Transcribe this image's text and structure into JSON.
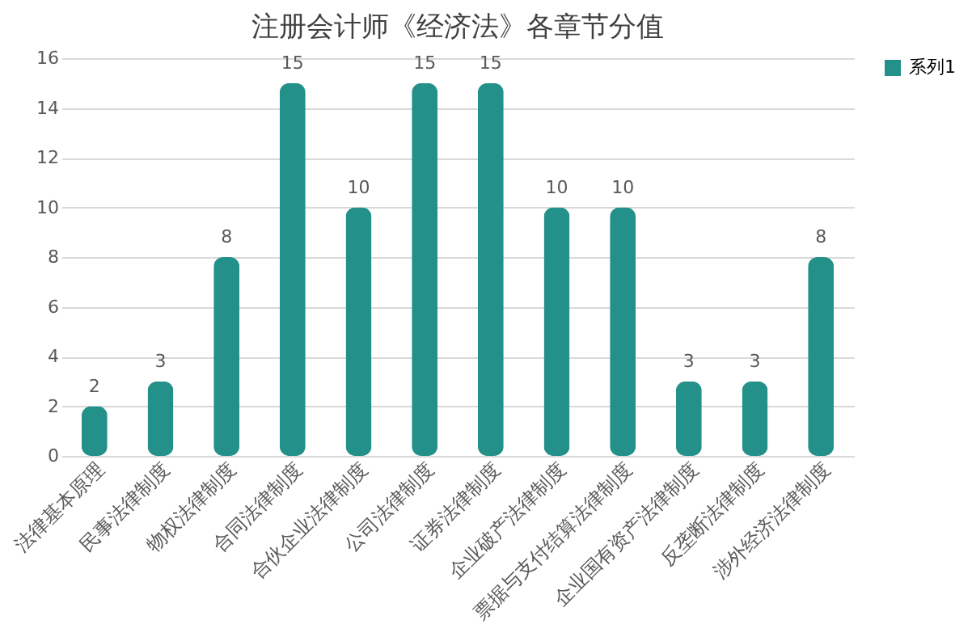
{
  "chart_data": {
    "type": "bar",
    "title": "注册会计师《经济法》各章节分值",
    "categories": [
      "法律基本原理",
      "民事法律制度",
      "物权法律制度",
      "合同法律制度",
      "合伙企业法律制度",
      "公司法律制度",
      "证券法律制度",
      "企业破产法律制度",
      "票据与支付结算法律制度",
      "企业国有资产法律制度",
      "反垄断法律制度",
      "涉外经济法律制度"
    ],
    "series": [
      {
        "name": "系列1",
        "color": "#23918a",
        "values": [
          2,
          3,
          8,
          15,
          10,
          15,
          15,
          10,
          10,
          3,
          3,
          8
        ]
      }
    ],
    "ylim": [
      0,
      16
    ],
    "yticks": [
      0,
      2,
      4,
      6,
      8,
      10,
      12,
      14,
      16
    ],
    "grid": "y",
    "legend": "right",
    "data_labels": true
  }
}
